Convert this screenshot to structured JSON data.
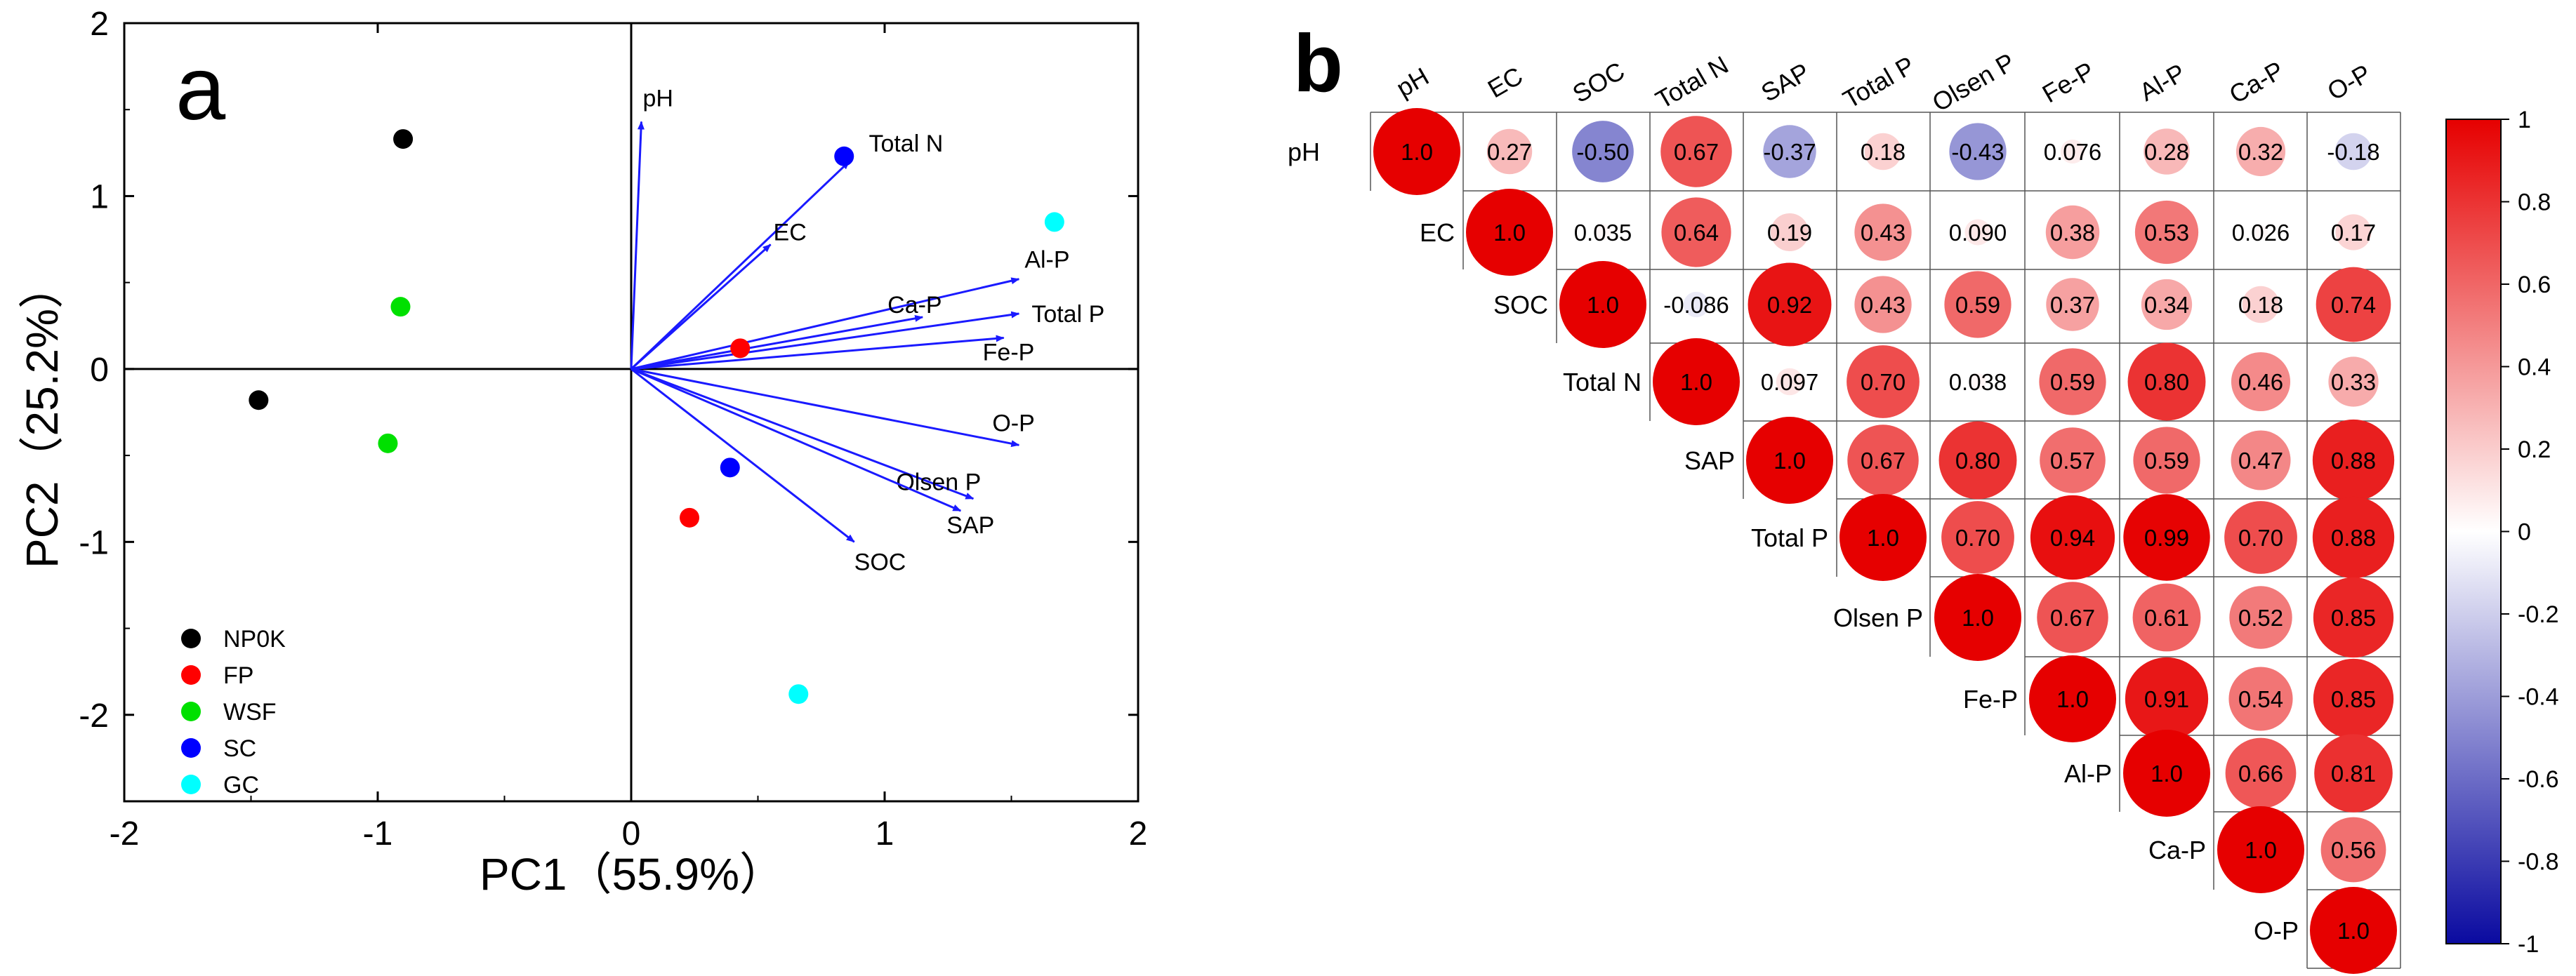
{
  "chart_data": [
    {
      "type": "scatter",
      "panel_label": "a",
      "title": "",
      "xlabel": "PC1（55.9%）",
      "ylabel": "PC2（25.2%）",
      "xlim": [
        -2,
        2
      ],
      "ylim": [
        -2.5,
        2
      ],
      "x_ticks": [
        -2,
        -1,
        0,
        1,
        2
      ],
      "y_ticks": [
        -2,
        -1,
        0,
        1,
        2
      ],
      "x_tick_labels": [
        "-2",
        "-1",
        "0",
        "1",
        "2"
      ],
      "y_tick_labels": [
        "-2",
        "-1",
        "0",
        "1",
        "2"
      ],
      "legend_position": "bottom-left",
      "series": [
        {
          "name": "NP0K",
          "color": "#000000",
          "points": [
            {
              "x": -0.9,
              "y": 1.33
            },
            {
              "x": -1.47,
              "y": -0.18
            }
          ]
        },
        {
          "name": "FP",
          "color": "#ff0000",
          "points": [
            {
              "x": 0.43,
              "y": 0.12
            },
            {
              "x": 0.23,
              "y": -0.86
            }
          ]
        },
        {
          "name": "WSF",
          "color": "#00e000",
          "points": [
            {
              "x": -0.91,
              "y": 0.36
            },
            {
              "x": -0.96,
              "y": -0.43
            }
          ]
        },
        {
          "name": "SC",
          "color": "#0000ff",
          "points": [
            {
              "x": 0.84,
              "y": 1.23
            },
            {
              "x": 0.39,
              "y": -0.57
            }
          ]
        },
        {
          "name": "GC",
          "color": "#00ffff",
          "points": [
            {
              "x": 1.67,
              "y": 0.85
            },
            {
              "x": 0.66,
              "y": -1.88
            }
          ]
        }
      ],
      "loadings": [
        {
          "name": "pH",
          "x": 0.04,
          "y": 1.43
        },
        {
          "name": "Total N",
          "x": 0.86,
          "y": 1.2
        },
        {
          "name": "EC",
          "x": 0.55,
          "y": 0.72
        },
        {
          "name": "Al-P",
          "x": 1.53,
          "y": 0.52
        },
        {
          "name": "Ca-P",
          "x": 1.15,
          "y": 0.3
        },
        {
          "name": "Total P",
          "x": 1.53,
          "y": 0.32
        },
        {
          "name": "Fe-P",
          "x": 1.47,
          "y": 0.18
        },
        {
          "name": "O-P",
          "x": 1.53,
          "y": -0.44
        },
        {
          "name": "Olsen P",
          "x": 1.35,
          "y": -0.75
        },
        {
          "name": "SAP",
          "x": 1.3,
          "y": -0.82
        },
        {
          "name": "SOC",
          "x": 0.88,
          "y": -1.0
        }
      ],
      "loading_color": "#1a1aff"
    },
    {
      "type": "heatmap",
      "panel_label": "b",
      "style": "upper-triangle correlation matrix, circle size and colour scale with r",
      "variables": [
        "pH",
        "EC",
        "SOC",
        "Total N",
        "SAP",
        "Total P",
        "Olsen P",
        "Fe-P",
        "Al-P",
        "Ca-P",
        "O-P"
      ],
      "matrix": [
        [
          "1.0",
          "0.27",
          "-0.50",
          "0.67",
          "-0.37",
          "0.18",
          "-0.43",
          "0.076",
          "0.28",
          "0.32",
          "-0.18"
        ],
        [
          null,
          "1.0",
          "0.035",
          "0.64",
          "0.19",
          "0.43",
          "0.090",
          "0.38",
          "0.53",
          "0.026",
          "0.17"
        ],
        [
          null,
          null,
          "1.0",
          "-0.086",
          "0.92",
          "0.43",
          "0.59",
          "0.37",
          "0.34",
          "0.18",
          "0.74"
        ],
        [
          null,
          null,
          null,
          "1.0",
          "0.097",
          "0.70",
          "0.038",
          "0.59",
          "0.80",
          "0.46",
          "0.33"
        ],
        [
          null,
          null,
          null,
          null,
          "1.0",
          "0.67",
          "0.80",
          "0.57",
          "0.59",
          "0.47",
          "0.88"
        ],
        [
          null,
          null,
          null,
          null,
          null,
          "1.0",
          "0.70",
          "0.94",
          "0.99",
          "0.70",
          "0.88"
        ],
        [
          null,
          null,
          null,
          null,
          null,
          null,
          "1.0",
          "0.67",
          "0.61",
          "0.52",
          "0.85"
        ],
        [
          null,
          null,
          null,
          null,
          null,
          null,
          null,
          "1.0",
          "0.91",
          "0.54",
          "0.85"
        ],
        [
          null,
          null,
          null,
          null,
          null,
          null,
          null,
          null,
          "1.0",
          "0.66",
          "0.81"
        ],
        [
          null,
          null,
          null,
          null,
          null,
          null,
          null,
          null,
          null,
          "1.0",
          "0.56"
        ],
        [
          null,
          null,
          null,
          null,
          null,
          null,
          null,
          null,
          null,
          null,
          "1.0"
        ]
      ],
      "colorbar": {
        "range": [
          -1,
          1
        ],
        "ticks": [
          1,
          0.8,
          0.6,
          0.4,
          0.2,
          0,
          -0.2,
          -0.4,
          -0.6,
          -0.8,
          -1
        ],
        "tick_labels": [
          "1",
          "0.8",
          "0.6",
          "0.4",
          "0.2",
          "0",
          "-0.2",
          "-0.4",
          "-0.6",
          "-0.8",
          "-1"
        ],
        "colors": {
          "negative": "#0a0aa0",
          "zero": "#ffffff",
          "positive": "#e60000"
        }
      }
    }
  ]
}
